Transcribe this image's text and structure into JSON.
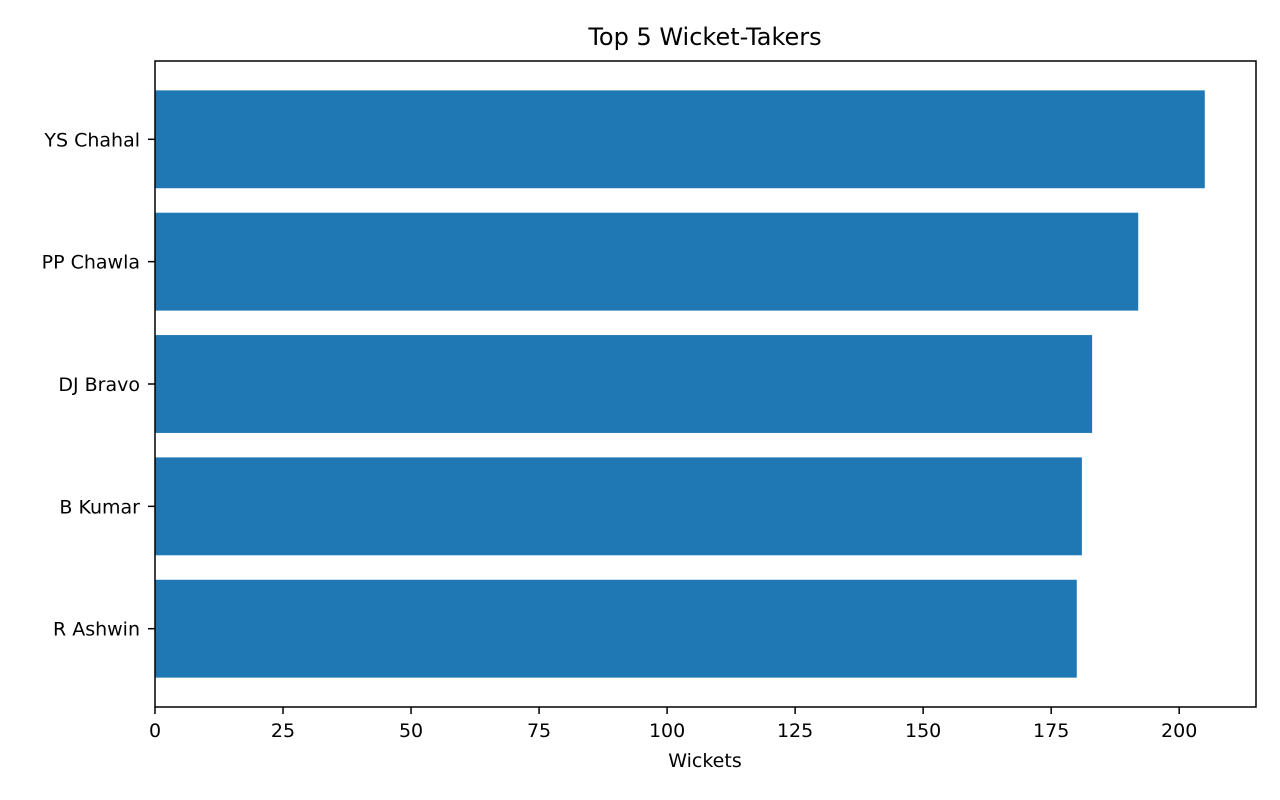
{
  "chart_data": {
    "type": "bar",
    "orientation": "horizontal",
    "title": "Top 5 Wicket-Takers",
    "xlabel": "Wickets",
    "ylabel": "",
    "categories": [
      "YS Chahal",
      "PP Chawla",
      "DJ Bravo",
      "B Kumar",
      "R Ashwin"
    ],
    "values": [
      205,
      192,
      183,
      181,
      180
    ],
    "xlim": [
      0,
      215
    ],
    "xticks": [
      0,
      25,
      50,
      75,
      100,
      125,
      150,
      175,
      200
    ],
    "grid": false,
    "legend": "none",
    "bar_color": "#1f77b4"
  }
}
